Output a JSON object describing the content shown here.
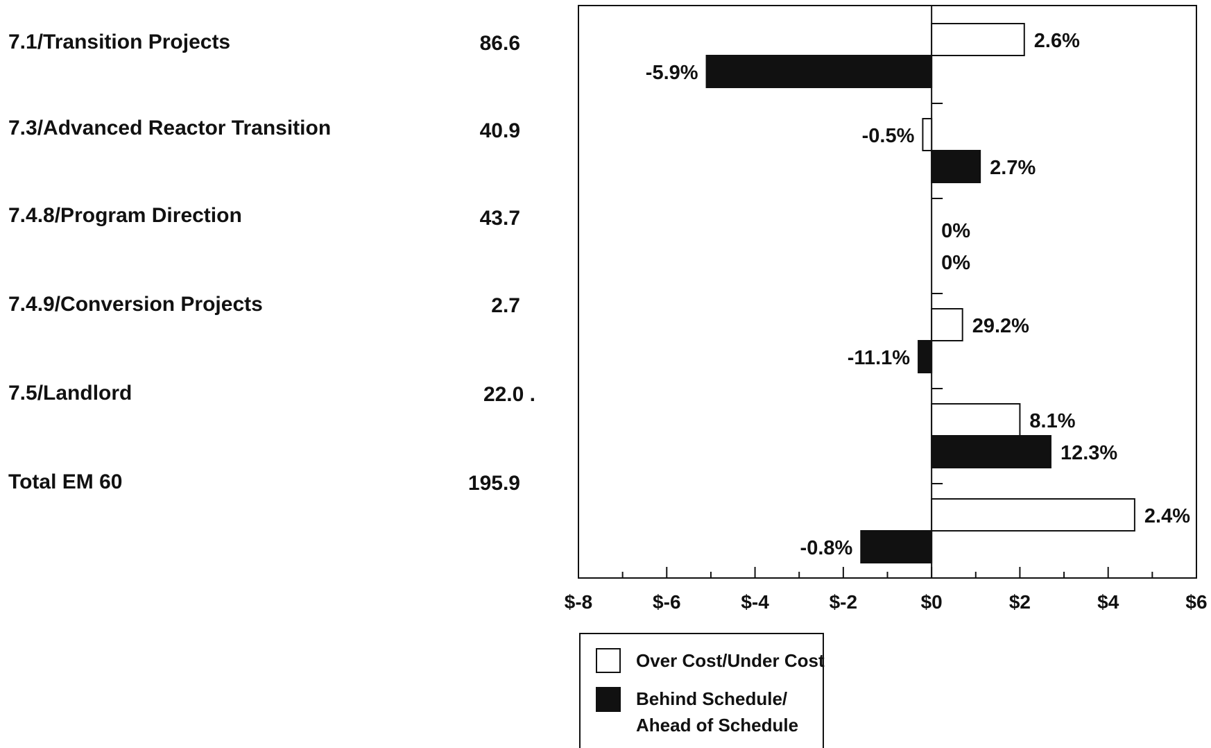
{
  "rows": [
    {
      "label": "7.1/Transition Projects",
      "value": "86.6"
    },
    {
      "label": "7.3/Advanced Reactor Transition",
      "value": "40.9"
    },
    {
      "label": "7.4.8/Program Direction",
      "value": "43.7"
    },
    {
      "label": "7.4.9/Conversion Projects",
      "value": "2.7"
    },
    {
      "label": "7.5/Landlord",
      "value": "22.0 ."
    },
    {
      "label": "Total EM 60",
      "value": "195.9"
    }
  ],
  "legend": {
    "cost_label": "Over Cost/Under Cost",
    "schedule_label_line1": "Behind Schedule/",
    "schedule_label_line2": "Ahead of Schedule"
  },
  "colors": {
    "cost_fill": "#ffffff",
    "schedule_fill": "#111111",
    "stroke": "#111111"
  },
  "chart_data": {
    "type": "bar",
    "orientation": "horizontal",
    "categories": [
      "7.1/Transition Projects",
      "7.3/Advanced Reactor Transition",
      "7.4.8/Program Direction",
      "7.4.9/Conversion Projects",
      "7.5/Landlord",
      "Total EM 60"
    ],
    "series": [
      {
        "name": "Over Cost/Under Cost",
        "values": [
          2.1,
          -0.2,
          0,
          0.7,
          2.0,
          4.6
        ],
        "labels": [
          "2.6%",
          "-0.5%",
          "0%",
          "29.2%",
          "8.1%",
          "2.4%"
        ]
      },
      {
        "name": "Behind Schedule/Ahead of Schedule",
        "values": [
          -5.1,
          1.1,
          0,
          -0.3,
          2.7,
          -1.6
        ],
        "labels": [
          "-5.9%",
          "2.7%",
          "0%",
          "-11.1%",
          "12.3%",
          "-0.8%"
        ]
      }
    ],
    "xlim": [
      -8,
      6
    ],
    "xticks": [
      -8,
      -6,
      -4,
      -2,
      0,
      2,
      4,
      6
    ],
    "xtick_labels": [
      "$-8",
      "$-6",
      "$-4",
      "$-2",
      "$0",
      "$2",
      "$4",
      "$6"
    ],
    "legend_position": "bottom-left"
  }
}
